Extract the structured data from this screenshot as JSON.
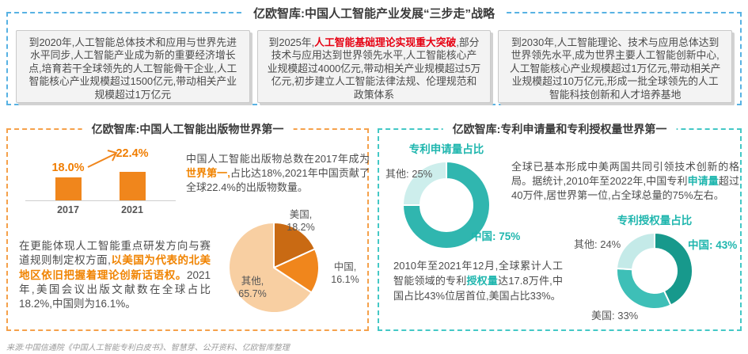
{
  "colors": {
    "accent_orange": "#f08300",
    "accent_red": "#e60012",
    "accent_teal": "#1fb6ae",
    "dashed_blue": "#58b2e3",
    "dashed_orange": "#f5a14b",
    "dashed_teal": "#44c8c6"
  },
  "header": {
    "title": "亿欧智库:中国人工智能产业发展“三步走”战略",
    "boxes": [
      {
        "parts": [
          {
            "text": "到2020年,人工智能总体技术和应用与世界先进水平同步,人工智能产业成为新的重要经济增长点,培育若干全球领先的人工智能骨干企业,人工智能核心产业规模超过1500亿元,带动相关产业规模超过1万亿元",
            "em": false
          }
        ]
      },
      {
        "parts": [
          {
            "text": "到2025年,",
            "em": false
          },
          {
            "text": "人工智能基础理论实现重大突破",
            "em": true
          },
          {
            "text": ",部分技术与应用达到世界领先水平,人工智能核心产业规模超过4000亿元,带动相关产业规模超过5万亿元,初步建立人工智能法律法规、伦理规范和政策体系",
            "em": false
          }
        ]
      },
      {
        "parts": [
          {
            "text": "到2030年,人工智能理论、技术与应用总体达到世界领先水平,成为世界主要人工智能创新中心,人工智能核心产业规模超过1万亿元,带动相关产业规模超过10万亿元,形成一批全球领先的人工智能科技创新和人才培养基地",
            "em": false
          }
        ]
      }
    ]
  },
  "publications": {
    "title": "亿欧智库:中国人工智能出版物世界第一",
    "intro": [
      {
        "text": "中国人工智能出版物总数在2017年成为",
        "em": false
      },
      {
        "text": "世界第一,",
        "em": true
      },
      {
        "text": "占比达18%,2021年中国贡献了全球22.4%的出版物数量。",
        "em": false
      }
    ],
    "detail": [
      {
        "text": "在更能体现人工智能重点研发方向与赛道规则制定权方面,",
        "em": false
      },
      {
        "text": "以美国为代表的北美地区依旧把握着理论创新话语权。",
        "em": true
      },
      {
        "text": "2021年,美国会议出版文献数在全球占比18.2%,中国则为16.1%。",
        "em": false
      }
    ]
  },
  "patents": {
    "title": "亿欧智库:专利申请量和专利授权量世界第一",
    "apply_text": [
      {
        "text": "全球已基本形成中美两国共同引领技术创新的格局。据统计,2010年至2022年,中国专利",
        "em": false
      },
      {
        "text": "申请量",
        "em": true
      },
      {
        "text": "超过40万件,居世界第一位,占全球总量的75%左右。",
        "em": false
      }
    ],
    "grant_text": [
      {
        "text": "2010年至2021年12月,全球累计人工智能领域的专利",
        "em": false
      },
      {
        "text": "授权量",
        "em": true
      },
      {
        "text": "达17.8万件,中国占比43%位居首位,美国占比33%。",
        "em": false
      }
    ]
  },
  "footer": {
    "source": "来源:中国信通院《中国人工智能专利白皮书》、智慧芽、公开资料、亿欧智库整理"
  },
  "chart_data": [
    {
      "type": "bar",
      "title": "中国人工智能出版物全球占比",
      "categories": [
        "2017",
        "2021"
      ],
      "values": [
        18.0,
        22.4
      ],
      "value_labels": [
        "18.0%",
        "22.4%"
      ],
      "unit": "%",
      "bar_color": "#f0861c",
      "ylim": [
        0,
        25
      ]
    },
    {
      "type": "pie",
      "title": "2021年全球人工智能会议出版文献占比",
      "labels": [
        "美国",
        "中国",
        "其他"
      ],
      "values": [
        18.2,
        16.1,
        65.7
      ],
      "colors": [
        "#c96a13",
        "#f0861c",
        "#f8cfa2"
      ],
      "label_lines": [
        [
          "美国,",
          "18.2%"
        ],
        [
          "中国,",
          "16.1%"
        ],
        [
          "其他,",
          "65.7%"
        ]
      ]
    },
    {
      "type": "donut",
      "title": "专利申请量占比",
      "labels": [
        "中国",
        "其他"
      ],
      "values": [
        75,
        25
      ],
      "colors": [
        "#30b6af",
        "#cdeeec"
      ],
      "callouts": [
        "中国: 75%",
        "其他: 25%"
      ]
    },
    {
      "type": "donut",
      "title": "专利授权量占比",
      "labels": [
        "中国",
        "美国",
        "其他"
      ],
      "values": [
        43,
        33,
        24
      ],
      "colors": [
        "#17998c",
        "#3ebfb7",
        "#c4eae8"
      ],
      "callouts": [
        "中国: 43%",
        "美国: 33%",
        "其他: 24%"
      ]
    }
  ]
}
